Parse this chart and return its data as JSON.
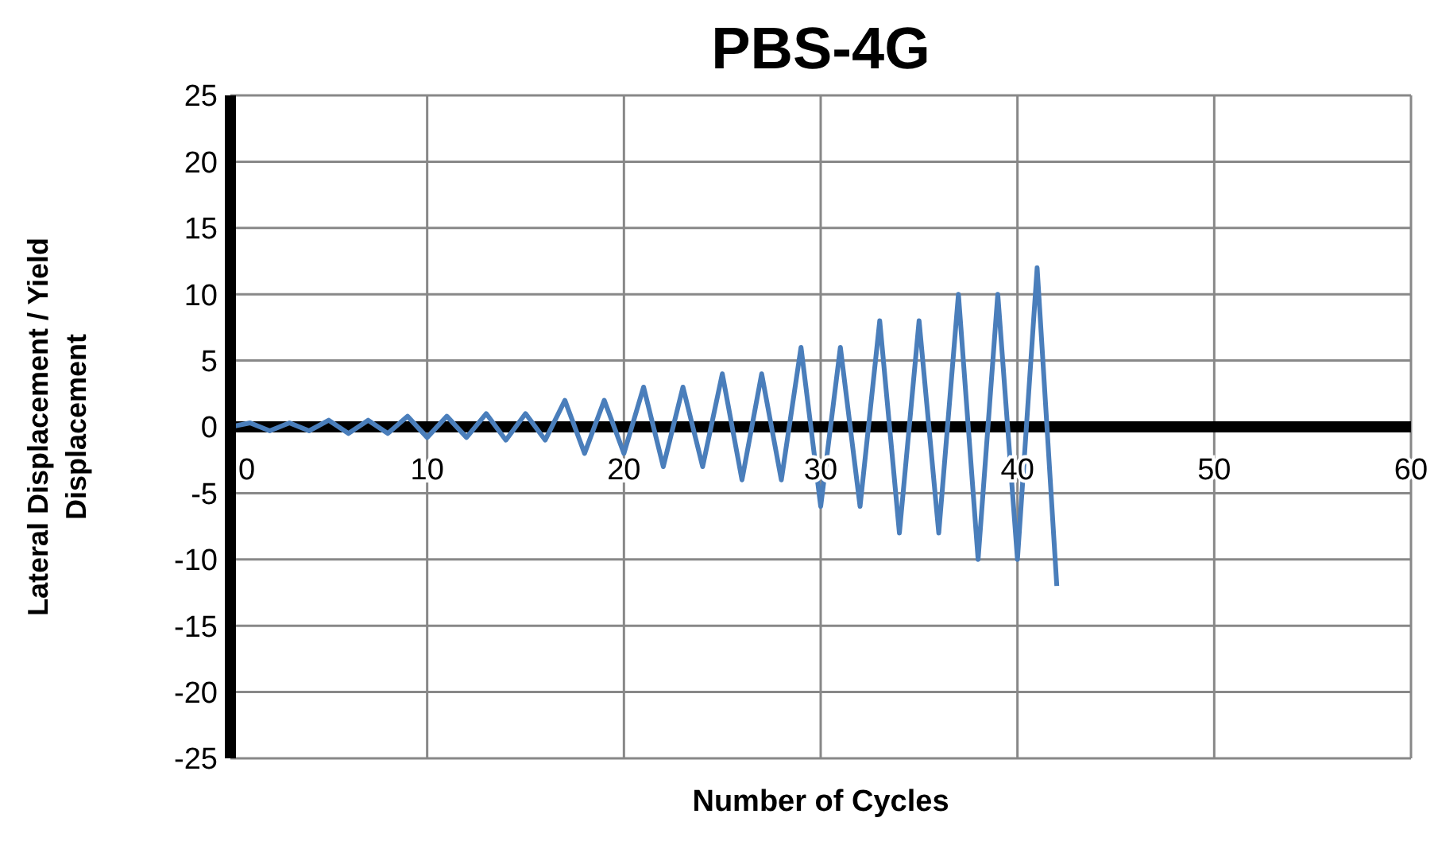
{
  "chart_data": {
    "type": "line",
    "title": "PBS-4G",
    "xlabel": "Number of Cycles",
    "ylabel": "Lateral Displacement / Yield Displacement",
    "x": [
      0,
      1,
      2,
      3,
      4,
      5,
      6,
      7,
      8,
      9,
      10,
      11,
      12,
      13,
      14,
      15,
      16,
      17,
      18,
      19,
      20,
      21,
      22,
      23,
      24,
      25,
      26,
      27,
      28,
      29,
      30,
      31,
      32,
      33,
      34,
      35,
      36,
      37,
      38,
      39,
      40,
      41,
      42
    ],
    "series": [
      {
        "color": "#4a7ebb",
        "values": [
          0,
          0.3,
          -0.3,
          0.3,
          -0.3,
          0.5,
          -0.5,
          0.5,
          -0.5,
          0.8,
          -0.8,
          0.8,
          -0.8,
          1,
          -1,
          1,
          -1,
          2,
          -2,
          2,
          -2,
          3,
          -3,
          3,
          -3,
          4,
          -4,
          4,
          -4,
          6,
          -6,
          6,
          -6,
          8,
          -8,
          8,
          -8,
          10,
          -10,
          10,
          -10,
          12,
          -12
        ]
      }
    ],
    "xlim": [
      0,
      60
    ],
    "xticks": [
      0,
      10,
      20,
      30,
      40,
      50,
      60
    ],
    "ylim": [
      -25,
      25
    ],
    "yticks": [
      -25,
      -20,
      -15,
      -10,
      -5,
      0,
      5,
      10,
      15,
      20,
      25
    ],
    "grid": true,
    "legend": false,
    "marker": "none",
    "line_style": "solid"
  }
}
